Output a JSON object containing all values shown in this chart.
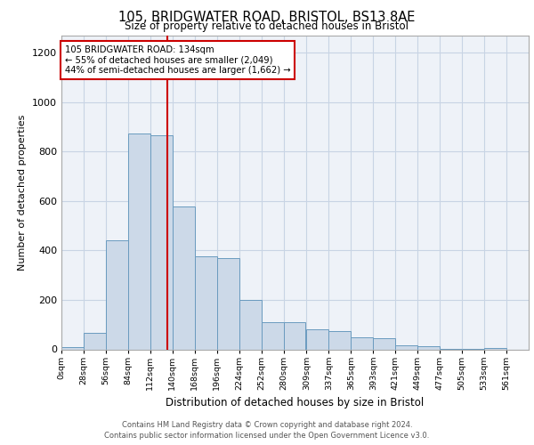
{
  "title": "105, BRIDGWATER ROAD, BRISTOL, BS13 8AE",
  "subtitle": "Size of property relative to detached houses in Bristol",
  "xlabel": "Distribution of detached houses by size in Bristol",
  "ylabel": "Number of detached properties",
  "annotation_line1": "105 BRIDGWATER ROAD: 134sqm",
  "annotation_line2": "← 55% of detached houses are smaller (2,049)",
  "annotation_line3": "44% of semi-detached houses are larger (1,662) →",
  "property_size": 134,
  "bar_left_edges": [
    0,
    28,
    56,
    84,
    112,
    140,
    168,
    196,
    224,
    252,
    280,
    309,
    337,
    365,
    393,
    421,
    449,
    477,
    505,
    533
  ],
  "bar_widths": [
    28,
    28,
    28,
    28,
    28,
    28,
    28,
    28,
    28,
    28,
    27,
    28,
    28,
    28,
    28,
    28,
    28,
    28,
    28,
    28
  ],
  "bar_heights": [
    10,
    65,
    440,
    875,
    865,
    580,
    375,
    370,
    200,
    110,
    110,
    80,
    75,
    50,
    45,
    15,
    12,
    3,
    2,
    5
  ],
  "tick_labels": [
    "0sqm",
    "28sqm",
    "56sqm",
    "84sqm",
    "112sqm",
    "140sqm",
    "168sqm",
    "196sqm",
    "224sqm",
    "252sqm",
    "280sqm",
    "309sqm",
    "337sqm",
    "365sqm",
    "393sqm",
    "421sqm",
    "449sqm",
    "477sqm",
    "505sqm",
    "533sqm",
    "561sqm"
  ],
  "bar_face_color": "#ccd9e8",
  "bar_edge_color": "#6a9bbf",
  "vline_color": "#cc0000",
  "vline_x": 134,
  "annotation_box_color": "#cc0000",
  "grid_color": "#c8d4e4",
  "background_color": "#eef2f8",
  "ylim": [
    0,
    1270
  ],
  "yticks": [
    0,
    200,
    400,
    600,
    800,
    1000,
    1200
  ],
  "footer_line1": "Contains HM Land Registry data © Crown copyright and database right 2024.",
  "footer_line2": "Contains public sector information licensed under the Open Government Licence v3.0."
}
